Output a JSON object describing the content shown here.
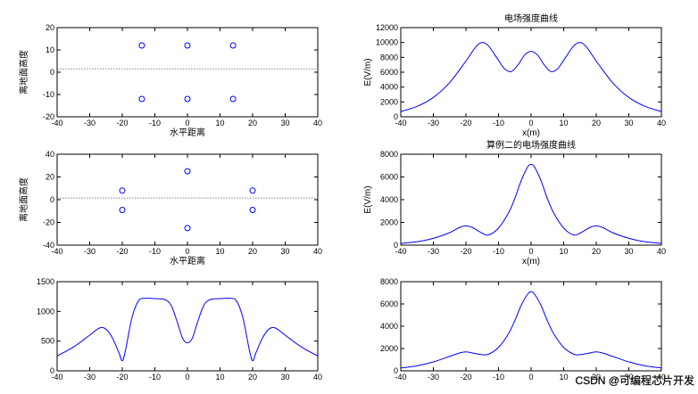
{
  "watermark": "CSDN @可编程芯片开发",
  "chart_data": [
    {
      "id": "p1",
      "type": "scatter",
      "title": "",
      "xlabel": "水平距离",
      "ylabel": "离地面高度",
      "xlim": [
        -40,
        40
      ],
      "ylim": [
        -20,
        20
      ],
      "xticks": [
        -40,
        -30,
        -20,
        -10,
        0,
        10,
        20,
        30,
        40
      ],
      "yticks": [
        -20,
        -10,
        0,
        10,
        20
      ],
      "points": [
        {
          "x": -14,
          "y": 12
        },
        {
          "x": 0,
          "y": 12
        },
        {
          "x": 14,
          "y": 12
        },
        {
          "x": -14,
          "y": -12
        },
        {
          "x": 0,
          "y": -12
        },
        {
          "x": 14,
          "y": -12
        }
      ],
      "hline": 1.5
    },
    {
      "id": "p2",
      "type": "line",
      "title": "电场强度曲线",
      "xlabel": "x(m)",
      "ylabel": "E(V/m)",
      "xlim": [
        -40,
        40
      ],
      "ylim": [
        0,
        12000
      ],
      "xticks": [
        -40,
        -30,
        -20,
        -10,
        0,
        10,
        20,
        30,
        40
      ],
      "yticks": [
        0,
        2000,
        4000,
        6000,
        8000,
        10000,
        12000
      ],
      "x": [
        -40,
        -35,
        -30,
        -25,
        -20,
        -17,
        -15,
        -13,
        -10,
        -8,
        -6,
        -4,
        -2,
        0,
        2,
        4,
        6,
        8,
        10,
        13,
        15,
        17,
        20,
        25,
        30,
        35,
        40
      ],
      "y": [
        700,
        1400,
        2600,
        4600,
        7500,
        9400,
        10000,
        9500,
        7600,
        6400,
        6100,
        7000,
        8300,
        8800,
        8300,
        7000,
        6100,
        6400,
        7600,
        9500,
        10000,
        9400,
        7500,
        4600,
        2600,
        1400,
        700
      ]
    },
    {
      "id": "p3",
      "type": "scatter",
      "title": "",
      "xlabel": "水平距离",
      "ylabel": "离地面高度",
      "xlim": [
        -40,
        40
      ],
      "ylim": [
        -40,
        40
      ],
      "xticks": [
        -40,
        -30,
        -20,
        -10,
        0,
        10,
        20,
        30,
        40
      ],
      "yticks": [
        -40,
        -20,
        0,
        20,
        40
      ],
      "points": [
        {
          "x": 0,
          "y": 25
        },
        {
          "x": -20,
          "y": 8
        },
        {
          "x": 20,
          "y": 8
        },
        {
          "x": -20,
          "y": -9
        },
        {
          "x": 20,
          "y": -9
        },
        {
          "x": 0,
          "y": -25
        }
      ],
      "hline": 1.5
    },
    {
      "id": "p4",
      "type": "line",
      "title": "算例二的电场强度曲线",
      "xlabel": "x(m)",
      "ylabel": "E(V/m)",
      "xlim": [
        -40,
        40
      ],
      "ylim": [
        0,
        8000
      ],
      "xticks": [
        -40,
        -30,
        -20,
        -10,
        0,
        10,
        20,
        30,
        40
      ],
      "yticks": [
        0,
        2000,
        4000,
        6000,
        8000
      ],
      "x": [
        -40,
        -35,
        -30,
        -25,
        -22,
        -20,
        -18,
        -15,
        -13,
        -10,
        -7,
        -5,
        -3,
        -1,
        0,
        1,
        3,
        5,
        7,
        10,
        13,
        15,
        18,
        20,
        22,
        25,
        30,
        35,
        40
      ],
      "y": [
        150,
        300,
        600,
        1100,
        1550,
        1700,
        1550,
        1050,
        900,
        1500,
        2800,
        4100,
        5700,
        6900,
        7100,
        6900,
        5700,
        4100,
        2800,
        1500,
        900,
        1050,
        1550,
        1700,
        1550,
        1100,
        600,
        300,
        150
      ]
    },
    {
      "id": "p5",
      "type": "line",
      "title": "",
      "xlabel": "",
      "ylabel": "",
      "xlim": [
        -40,
        40
      ],
      "ylim": [
        0,
        1500
      ],
      "xticks": [
        -40,
        -30,
        -20,
        -10,
        0,
        10,
        20,
        30,
        40
      ],
      "yticks": [
        0,
        500,
        1000,
        1500
      ],
      "x": [
        -40,
        -35,
        -30,
        -27,
        -25,
        -23,
        -21,
        -20,
        -19,
        -17,
        -15,
        -13,
        -10,
        -7,
        -5,
        -3,
        -1.5,
        0,
        1.5,
        3,
        5,
        7,
        10,
        13,
        15,
        17,
        19,
        20,
        21,
        23,
        25,
        27,
        30,
        35,
        40
      ],
      "y": [
        250,
        400,
        600,
        720,
        700,
        550,
        300,
        170,
        350,
        900,
        1180,
        1220,
        1215,
        1200,
        1100,
        800,
        550,
        470,
        550,
        800,
        1100,
        1200,
        1215,
        1220,
        1180,
        900,
        350,
        170,
        300,
        550,
        700,
        720,
        600,
        400,
        250
      ]
    },
    {
      "id": "p6",
      "type": "line",
      "title": "",
      "xlabel": "",
      "ylabel": "",
      "xlim": [
        -40,
        40
      ],
      "ylim": [
        0,
        8000
      ],
      "xticks": [
        -40,
        -30,
        -20,
        -10,
        0,
        10,
        20,
        30,
        40
      ],
      "yticks": [
        0,
        2000,
        4000,
        6000,
        8000
      ],
      "x": [
        -40,
        -35,
        -30,
        -25,
        -22,
        -20,
        -18,
        -15,
        -13,
        -10,
        -7,
        -5,
        -3,
        -1,
        0,
        1,
        3,
        5,
        7,
        10,
        13,
        15,
        18,
        20,
        22,
        25,
        30,
        35,
        40
      ],
      "y": [
        250,
        450,
        800,
        1300,
        1600,
        1700,
        1600,
        1450,
        1500,
        2100,
        3300,
        4500,
        5900,
        6900,
        7100,
        6900,
        5900,
        4500,
        3300,
        2100,
        1500,
        1450,
        1600,
        1700,
        1600,
        1300,
        800,
        450,
        250
      ]
    }
  ]
}
